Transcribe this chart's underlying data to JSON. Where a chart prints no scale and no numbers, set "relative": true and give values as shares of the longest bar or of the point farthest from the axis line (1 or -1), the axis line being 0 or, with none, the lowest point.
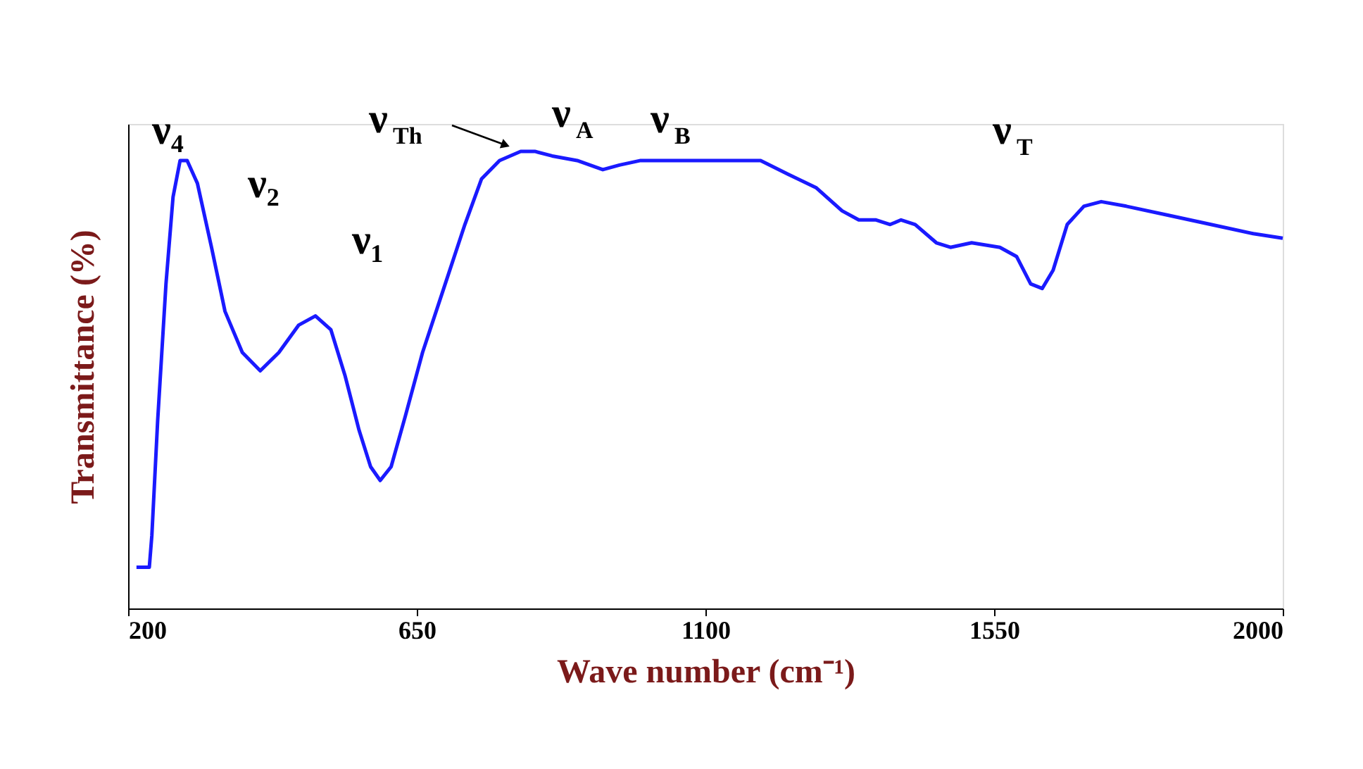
{
  "chart_data": {
    "type": "line",
    "relative": true,
    "xlabel": "Wave number (cm⁻¹)",
    "ylabel": "Transmittance (%)",
    "xlim": [
      200,
      2000
    ],
    "xticks": [
      200,
      650,
      1100,
      1550,
      2000
    ],
    "grid": false,
    "marker": "none",
    "line_style": "solid",
    "x": [
      213,
      233,
      237,
      246,
      259,
      270,
      281,
      292,
      308,
      330,
      351,
      378,
      406,
      435,
      466,
      492,
      516,
      538,
      560,
      578,
      593,
      610,
      632,
      659,
      692,
      725,
      751,
      779,
      812,
      834,
      861,
      900,
      940,
      966,
      999,
      1054,
      1098,
      1142,
      1186,
      1229,
      1273,
      1313,
      1339,
      1366,
      1388,
      1405,
      1427,
      1460,
      1482,
      1515,
      1559,
      1585,
      1607,
      1625,
      1642,
      1664,
      1690,
      1717,
      1756,
      1822,
      1888,
      1954,
      2000
    ],
    "series": [
      {
        "color": "#1a1aff",
        "values": [
          0.09,
          0.09,
          0.16,
          0.41,
          0.71,
          0.9,
          0.98,
          0.98,
          0.93,
          0.79,
          0.65,
          0.56,
          0.52,
          0.56,
          0.62,
          0.64,
          0.61,
          0.51,
          0.39,
          0.31,
          0.28,
          0.31,
          0.42,
          0.56,
          0.7,
          0.84,
          0.94,
          0.98,
          1.0,
          1.0,
          0.99,
          0.98,
          0.96,
          0.97,
          0.98,
          0.98,
          0.98,
          0.98,
          0.98,
          0.95,
          0.92,
          0.87,
          0.85,
          0.85,
          0.84,
          0.85,
          0.84,
          0.8,
          0.79,
          0.8,
          0.79,
          0.77,
          0.71,
          0.7,
          0.74,
          0.84,
          0.88,
          0.89,
          0.88,
          0.86,
          0.84,
          0.82,
          0.81
        ]
      }
    ],
    "annotations": [
      "ν₄",
      "ν₂",
      "ν₁",
      "ν$_{Th}$",
      "ν$_{A}$",
      "ν$_{B}$",
      "ν$_{T}$"
    ]
  }
}
